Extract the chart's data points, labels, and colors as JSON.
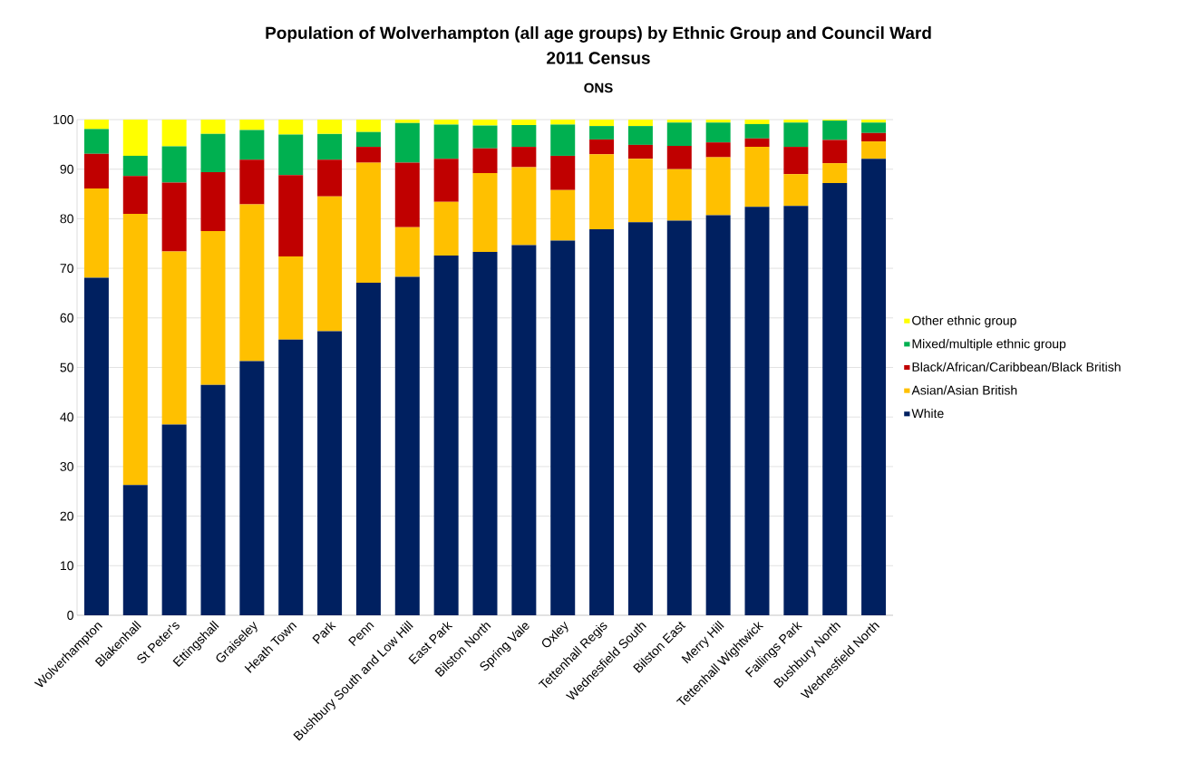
{
  "chart_data": {
    "type": "bar",
    "stacked": true,
    "title": "Population of Wolverhampton (all age groups) by Ethnic Group and Council Ward",
    "subtitle": "2011 Census",
    "annotations": [
      "ONS"
    ],
    "categories": [
      "Wolverhampton",
      "Blakenhall",
      "St Peter's",
      "Ettingshall",
      "Graiseley",
      "Heath Town",
      "Park",
      "Penn",
      "Bushbury South and Low Hill",
      "East Park",
      "Bilston North",
      "Spring Vale",
      "Oxley",
      "Tettenhall Regis",
      "Wednesfield South",
      "Bilston East",
      "Merry Hill",
      "Tettenhall Wightwick",
      "Fallings Park",
      "Bushbury North",
      "Wednesfield North"
    ],
    "series": [
      {
        "name": "White",
        "color": "#002060",
        "values": [
          68.1,
          26.3,
          38.5,
          46.5,
          51.3,
          55.6,
          57.3,
          67.1,
          68.3,
          72.6,
          73.3,
          74.7,
          75.6,
          77.9,
          79.3,
          79.6,
          80.7,
          82.4,
          82.6,
          87.2,
          92.1
        ]
      },
      {
        "name": "Asian/Asian British",
        "color": "#ffc000",
        "values": [
          18.0,
          54.7,
          34.9,
          31.0,
          31.6,
          16.8,
          27.2,
          24.2,
          10.0,
          10.8,
          15.9,
          15.7,
          10.2,
          15.1,
          12.8,
          10.4,
          11.7,
          12.1,
          6.4,
          4.0,
          3.5
        ]
      },
      {
        "name": "Black/African/Caribbean/Black British",
        "color": "#c00000",
        "values": [
          7.0,
          7.6,
          13.9,
          11.9,
          9.0,
          16.4,
          7.4,
          3.2,
          13.0,
          8.7,
          5.0,
          4.1,
          6.9,
          3.0,
          2.8,
          4.7,
          3.0,
          1.7,
          5.5,
          4.7,
          1.7
        ]
      },
      {
        "name": "Mixed/multiple ethnic group",
        "color": "#00b050",
        "values": [
          5.0,
          4.1,
          7.3,
          7.7,
          6.0,
          8.2,
          5.2,
          3.0,
          8.0,
          6.9,
          4.6,
          4.4,
          6.3,
          2.7,
          3.8,
          4.7,
          4.0,
          2.9,
          4.9,
          3.9,
          2.1
        ]
      },
      {
        "name": "Other ethnic group",
        "color": "#ffff00",
        "values": [
          1.9,
          7.3,
          5.4,
          2.9,
          2.1,
          3.0,
          2.9,
          2.5,
          0.7,
          1.0,
          1.2,
          1.1,
          1.0,
          1.3,
          1.3,
          0.6,
          0.6,
          0.9,
          0.6,
          0.2,
          0.6
        ]
      }
    ],
    "ylim": [
      0,
      100
    ],
    "yticks": [
      0,
      10,
      20,
      30,
      40,
      50,
      60,
      70,
      80,
      90,
      100
    ],
    "grid": "y",
    "legend": "right"
  }
}
